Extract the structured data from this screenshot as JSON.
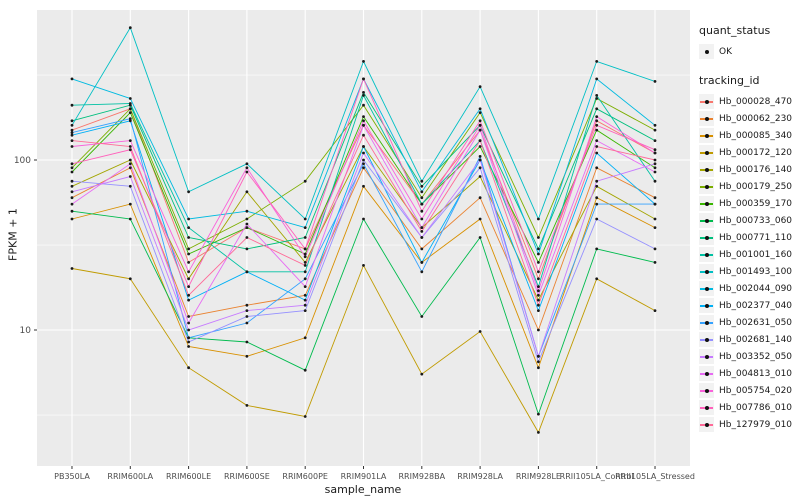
{
  "chart_data": {
    "type": "line",
    "title": "",
    "xlabel": "sample_name",
    "ylabel": "FPKM + 1",
    "y_scale": "log10",
    "y_ticks": [
      10,
      100
    ],
    "y_minor_ticks": [
      3.16,
      31.6,
      316
    ],
    "ylim": [
      1.6,
      760
    ],
    "grid": true,
    "panel_bg": "#EBEBEB",
    "grid_color": "#FFFFFF",
    "point_color": "#1a1a1a",
    "categories": [
      "PB350LA",
      "RRIM600LA",
      "RRIM600LE",
      "RRIM600SE",
      "RRIM600PE",
      "RRIM901LA",
      "RRIM928BA",
      "RRIM928LA",
      "RRIM928LE",
      "RRII105LA_Control",
      "RRII105LA_Stressed"
    ],
    "legend": {
      "position": "right",
      "quant_status_title": "quant_status",
      "quant_status_items": [
        {
          "label": "OK"
        }
      ],
      "tracking_title": "tracking_id"
    },
    "series": [
      {
        "name": "Hb_000028_470",
        "color": "#F8766D",
        "values": [
          150,
          200,
          25,
          40,
          30,
          160,
          55,
          150,
          20,
          170,
          110
        ]
      },
      {
        "name": "Hb_000062_230",
        "color": "#EA8331",
        "values": [
          60,
          90,
          12,
          14,
          16,
          90,
          30,
          60,
          10,
          90,
          60
        ]
      },
      {
        "name": "Hb_000085_340",
        "color": "#D89000",
        "values": [
          45,
          55,
          8,
          7,
          9,
          70,
          25,
          45,
          6,
          60,
          40
        ]
      },
      {
        "name": "Hb_000172_120",
        "color": "#C09B00",
        "values": [
          23,
          20,
          6,
          3.6,
          3.1,
          24,
          5.5,
          9.8,
          2.5,
          20,
          13
        ]
      },
      {
        "name": "Hb_000176_140",
        "color": "#A3A500",
        "values": [
          70,
          100,
          20,
          65,
          25,
          120,
          40,
          80,
          15,
          70,
          45
        ]
      },
      {
        "name": "Hb_000179_250",
        "color": "#7CAE00",
        "values": [
          90,
          200,
          30,
          45,
          75,
          210,
          60,
          190,
          35,
          230,
          150
        ]
      },
      {
        "name": "Hb_000359_170",
        "color": "#39B600",
        "values": [
          85,
          190,
          28,
          40,
          28,
          180,
          55,
          120,
          25,
          150,
          90
        ]
      },
      {
        "name": "Hb_000733_060",
        "color": "#00BB4E",
        "values": [
          50,
          45,
          9,
          8.5,
          5.8,
          45,
          12,
          35,
          3.2,
          30,
          25
        ]
      },
      {
        "name": "Hb_000771_110",
        "color": "#00BF7D",
        "values": [
          170,
          210,
          35,
          30,
          35,
          250,
          70,
          160,
          30,
          200,
          130
        ]
      },
      {
        "name": "Hb_001001_160",
        "color": "#00C1A3",
        "values": [
          210,
          215,
          40,
          22,
          22,
          240,
          55,
          130,
          18,
          240,
          75
        ]
      },
      {
        "name": "Hb_001493_100",
        "color": "#00BFC4",
        "values": [
          160,
          600,
          65,
          95,
          45,
          380,
          75,
          270,
          45,
          380,
          290
        ]
      },
      {
        "name": "Hb_002044_090",
        "color": "#00BAE0",
        "values": [
          300,
          230,
          45,
          50,
          40,
          300,
          65,
          200,
          28,
          300,
          160
        ]
      },
      {
        "name": "Hb_002377_040",
        "color": "#00B0F6",
        "values": [
          140,
          170,
          15,
          22,
          15,
          120,
          25,
          100,
          13,
          110,
          55
        ]
      },
      {
        "name": "Hb_002631_050",
        "color": "#35A2FF",
        "values": [
          145,
          175,
          9,
          11,
          20,
          95,
          22,
          105,
          7,
          55,
          55
        ]
      },
      {
        "name": "Hb_002681_140",
        "color": "#9590FF",
        "values": [
          75,
          70,
          8.5,
          12,
          13,
          100,
          35,
          90,
          6.5,
          45,
          30
        ]
      },
      {
        "name": "Hb_003352_050",
        "color": "#C77CFF",
        "values": [
          65,
          80,
          10,
          13,
          14,
          110,
          35,
          100,
          7,
          75,
          95
        ]
      },
      {
        "name": "Hb_004813_010",
        "color": "#E76BF3",
        "values": [
          55,
          95,
          11,
          42,
          18,
          160,
          40,
          150,
          16,
          130,
          85
        ]
      },
      {
        "name": "Hb_005754_020",
        "color": "#FA62DB",
        "values": [
          120,
          130,
          22,
          90,
          27,
          170,
          45,
          160,
          17,
          180,
          110
        ]
      },
      {
        "name": "Hb_007786_010",
        "color": "#FF62BC",
        "values": [
          95,
          115,
          18,
          85,
          30,
          300,
          50,
          170,
          22,
          160,
          115
        ]
      },
      {
        "name": "Hb_127979_010",
        "color": "#FF6A98",
        "values": [
          130,
          120,
          16,
          35,
          24,
          140,
          38,
          130,
          14,
          120,
          100
        ]
      }
    ]
  }
}
